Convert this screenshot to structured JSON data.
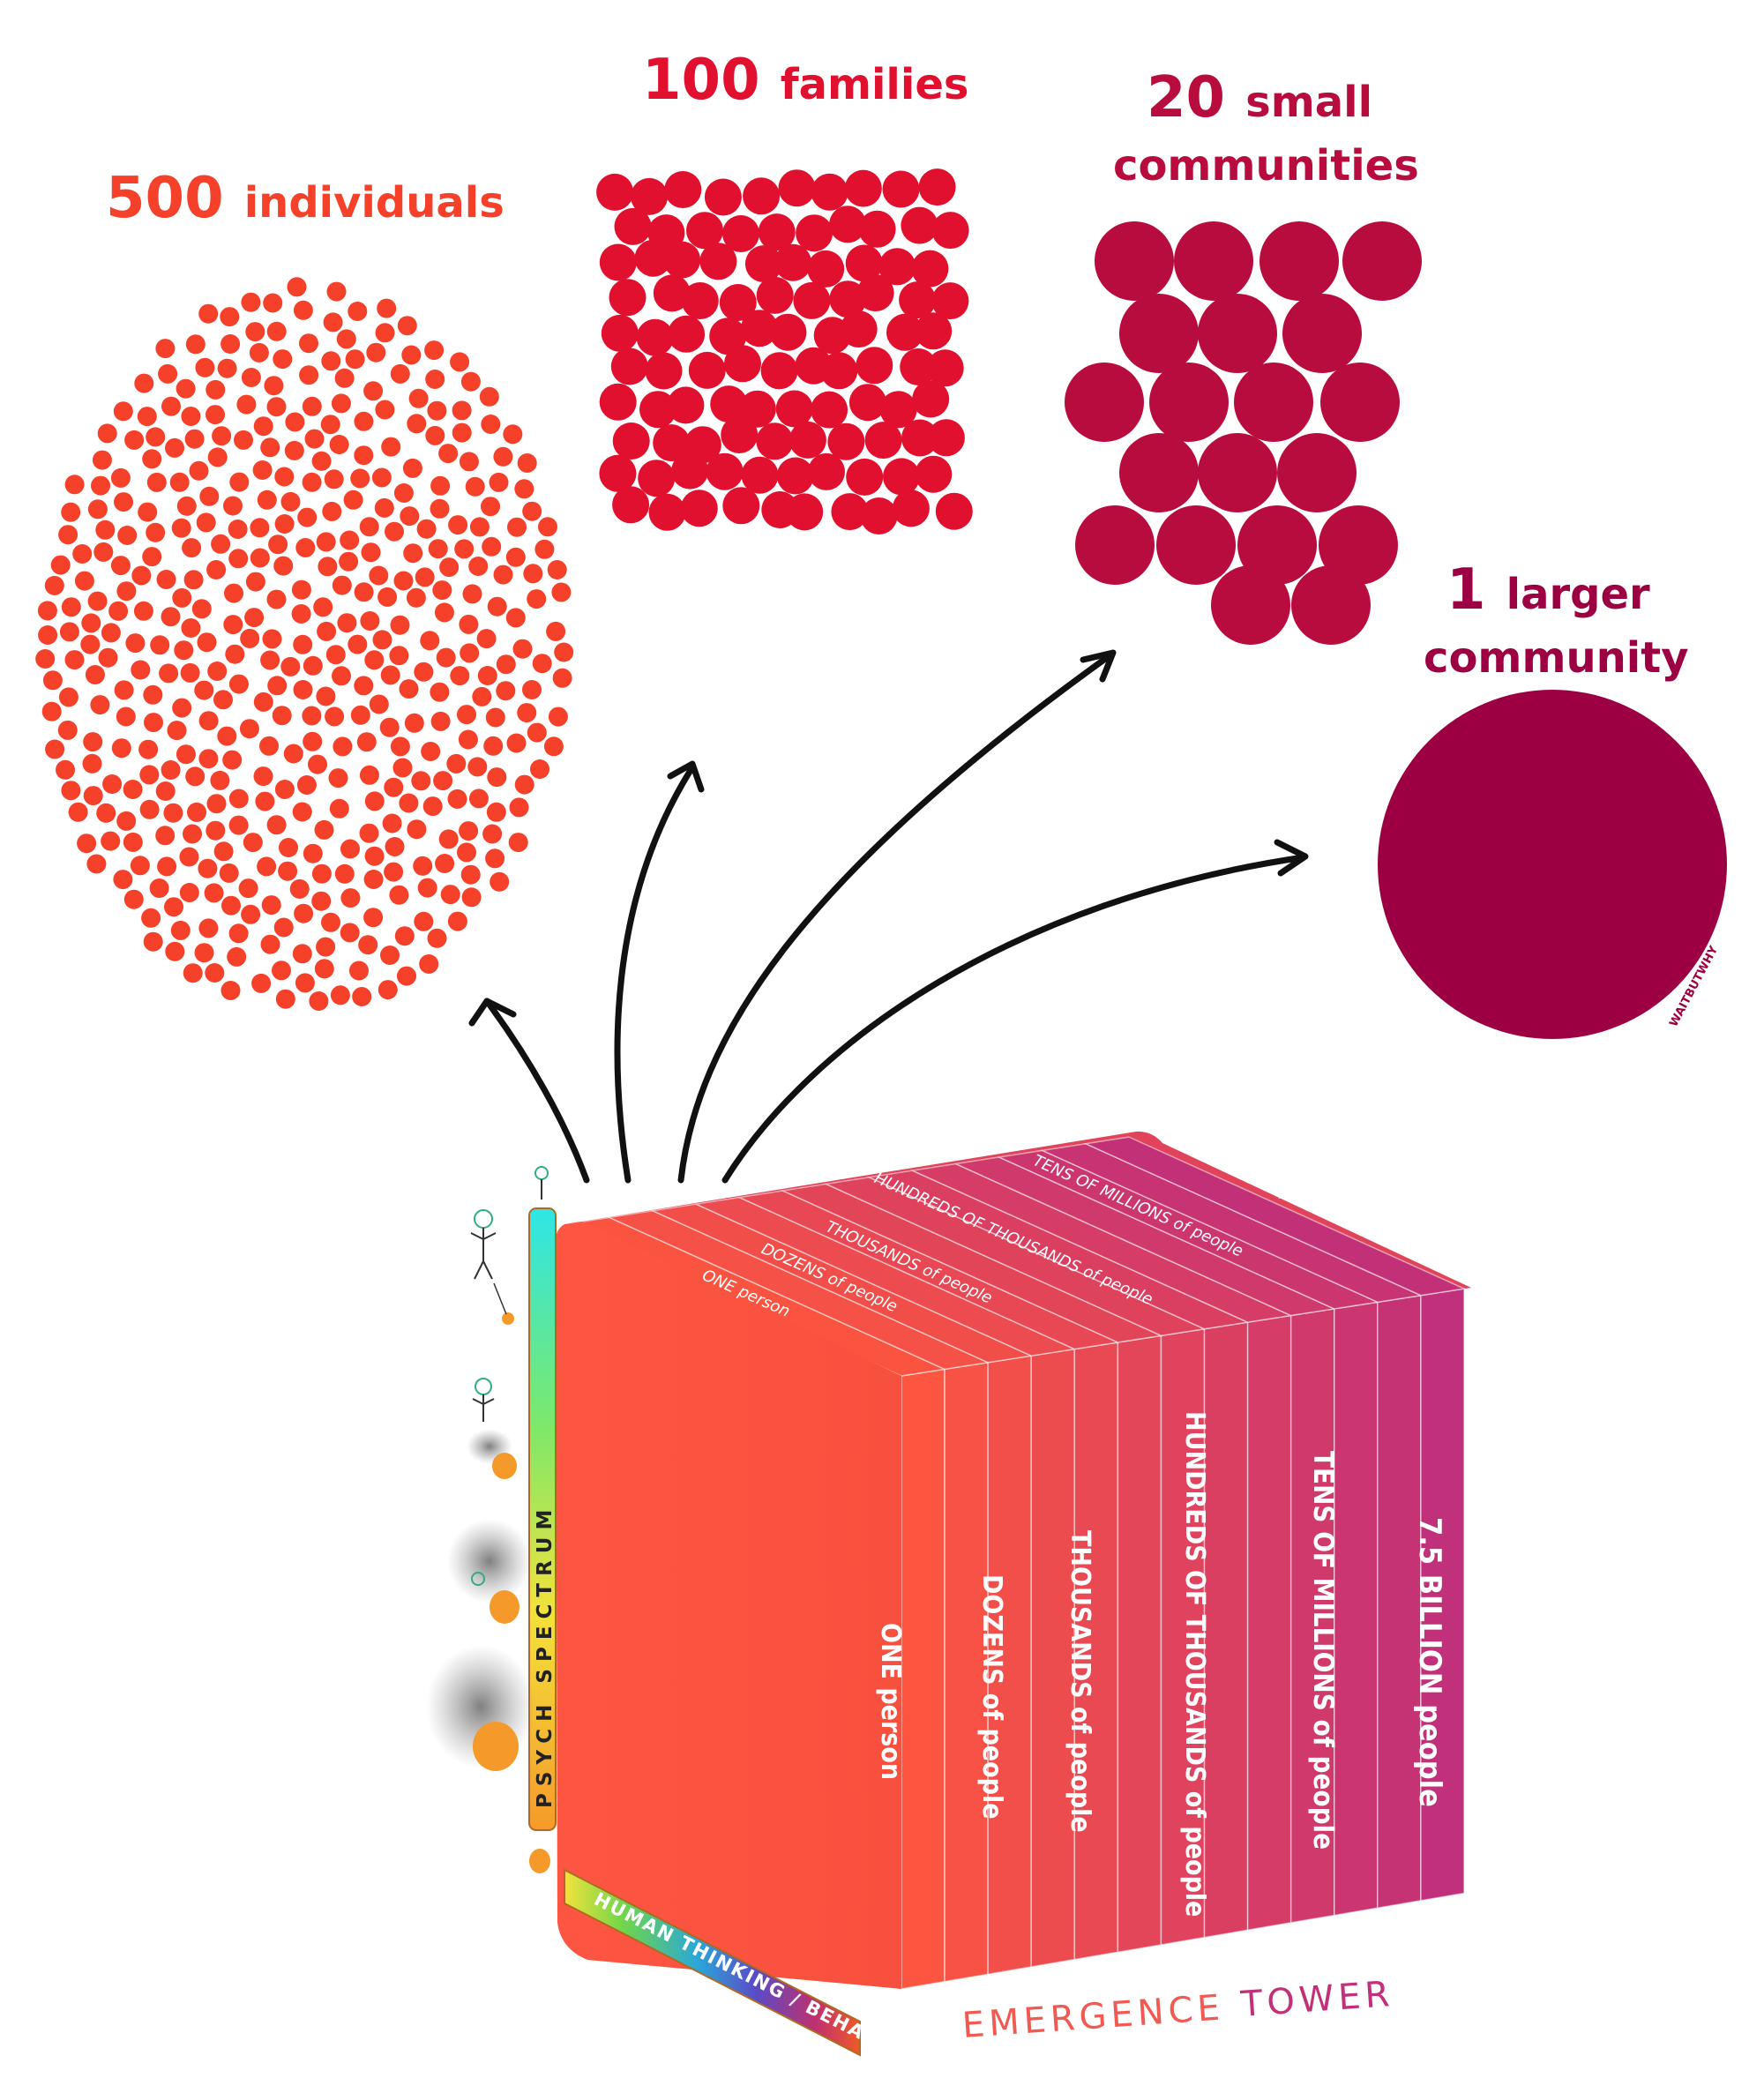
{
  "groups": [
    {
      "number": "500",
      "label": "individuals",
      "color": "#f5402a"
    },
    {
      "number": "100",
      "label": "families",
      "color": "#e1102e"
    },
    {
      "number": "20",
      "label_line1": "small",
      "label_line2": "communities",
      "color": "#b90c3e"
    },
    {
      "number": "1",
      "label_line1": "larger",
      "label_line2": "community",
      "color": "#9c0042"
    }
  ],
  "tower": {
    "name_word1": "EMERGENCE",
    "name_word2": "TOWER",
    "levels": [
      "ONE person",
      "DOZENS of people",
      "THOUSANDS of people",
      "HUNDREDS OF THOUSANDS of people",
      "TENS OF MILLIONS of people",
      "7.5 BILLION people"
    ],
    "axis_vertical": "PSYCH SPECTRUM",
    "axis_horizontal": "HUMAN THINKING / BEHAVIOR",
    "front_color": "#fb5540",
    "end_color": "#c1307a"
  },
  "signature": "WAITBUTWHY",
  "icons": [
    "balloon-stick-figure-icon",
    "smoky-creature-icon"
  ]
}
